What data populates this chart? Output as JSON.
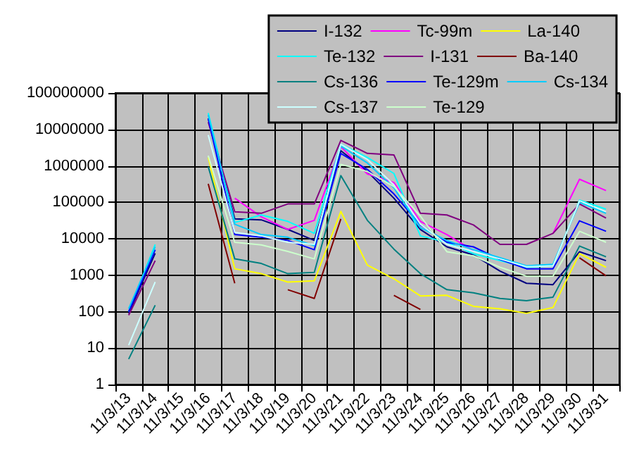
{
  "chart_data": {
    "type": "line",
    "categories": [
      "11/3/13",
      "11/3/14",
      "11/3/15",
      "11/3/16",
      "11/3/17",
      "11/3/18",
      "11/3/19",
      "11/3/20",
      "11/3/21",
      "11/3/22",
      "11/3/23",
      "11/3/24",
      "11/3/25",
      "11/3/26",
      "11/3/27",
      "11/3/28",
      "11/3/29",
      "11/3/30",
      "11/3/31"
    ],
    "series": [
      {
        "name": "I-132",
        "color": "#000080",
        "values": [
          90,
          4000,
          null,
          20000000.0,
          35000,
          33000,
          18000,
          9000,
          2600000,
          700000,
          130000,
          18000,
          6000,
          3600,
          1300,
          600,
          550,
          4400,
          2500
        ]
      },
      {
        "name": "Tc-99m",
        "color": "#ff00ff",
        "values": [
          null,
          null,
          null,
          null,
          130000,
          40000,
          18000,
          32000,
          3400000,
          600000,
          350000,
          30000,
          13000,
          4700,
          null,
          null,
          14000,
          430000,
          210000
        ]
      },
      {
        "name": "La-140",
        "color": "#ffff00",
        "values": [
          null,
          null,
          null,
          1700000,
          1500,
          1100,
          650,
          700,
          56000,
          1900,
          800,
          270,
          280,
          140,
          120,
          90,
          130,
          3900,
          1650
        ]
      },
      {
        "name": "Te-132",
        "color": "#00ffff",
        "values": [
          100,
          7000,
          null,
          28000000.0,
          28000,
          45000,
          30000,
          14000,
          3900000,
          1700000,
          620000,
          12000,
          8000,
          3900,
          2500,
          1650,
          1800,
          115000,
          65000
        ]
      },
      {
        "name": "I-131",
        "color": "#800080",
        "values": [
          80,
          2500,
          null,
          16000000.0,
          55000,
          50000,
          90000,
          90000,
          5000000,
          2200000,
          2000000,
          50000,
          45000,
          24000,
          7000,
          7000,
          14000,
          90000,
          37000
        ]
      },
      {
        "name": "Ba-140",
        "color": "#800000",
        "values": [
          null,
          null,
          null,
          320000,
          600,
          null,
          400,
          230,
          35000,
          null,
          280,
          115,
          null,
          null,
          null,
          null,
          null,
          3000,
          960
        ]
      },
      {
        "name": "Cs-136",
        "color": "#008080",
        "values": [
          5,
          150,
          null,
          950000,
          2800,
          2100,
          1100,
          1200,
          540000,
          32000,
          5200,
          1100,
          400,
          330,
          230,
          200,
          250,
          6300,
          3200
        ]
      },
      {
        "name": "Te-129m",
        "color": "#0000ff",
        "values": [
          100,
          5000,
          null,
          20000000.0,
          13000,
          11000,
          9000,
          5000,
          2200000,
          800000,
          170000,
          24000,
          8000,
          6000,
          2700,
          1500,
          1500,
          31000,
          16000
        ]
      },
      {
        "name": "Cs-134",
        "color": "#00ccff",
        "values": [
          120,
          6000,
          null,
          25000000.0,
          25000,
          13000,
          11000,
          6500,
          3500000,
          1200000,
          250000,
          20000,
          9000,
          5000,
          3000,
          1800,
          2000,
          100000,
          50000
        ]
      },
      {
        "name": "Cs-137",
        "color": "#ccffff",
        "values": [
          12,
          650,
          null,
          7000000,
          15000,
          12000,
          8000,
          7000,
          3900000,
          1500000,
          300000,
          25000,
          7000,
          4500,
          2800,
          1700,
          1800,
          110000,
          55000
        ]
      },
      {
        "name": "Te-129",
        "color": "#ccffcc",
        "values": [
          null,
          null,
          null,
          1900000,
          8000,
          6800,
          4500,
          2800,
          1100000,
          700000,
          270000,
          42000,
          4400,
          3400,
          1650,
          940,
          940,
          16000,
          8000
        ]
      }
    ],
    "log": true,
    "ylim": [
      1,
      100000000
    ],
    "yticks": [
      1,
      10,
      100,
      1000,
      10000,
      100000,
      1000000,
      10000000,
      100000000
    ],
    "grid": true,
    "legend": "top right",
    "marker": "none",
    "line_style": "solid"
  }
}
